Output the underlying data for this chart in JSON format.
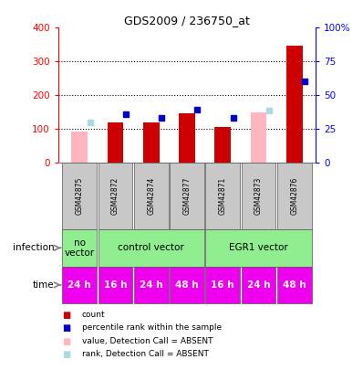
{
  "title": "GDS2009 / 236750_at",
  "samples": [
    "GSM42875",
    "GSM42872",
    "GSM42874",
    "GSM42877",
    "GSM42871",
    "GSM42873",
    "GSM42876"
  ],
  "count_values": [
    null,
    120,
    120,
    148,
    107,
    null,
    348
  ],
  "count_absent": [
    92,
    null,
    null,
    null,
    null,
    150,
    null
  ],
  "rank_values": [
    null,
    143,
    133,
    157,
    134,
    null,
    242
  ],
  "rank_absent": [
    120,
    null,
    null,
    null,
    null,
    155,
    null
  ],
  "ylim_left": [
    0,
    400
  ],
  "yticks_left": [
    0,
    100,
    200,
    300,
    400
  ],
  "ytick_labels_right": [
    "0",
    "25",
    "50",
    "75",
    "100%"
  ],
  "color_count": "#CC0000",
  "color_rank": "#0000CC",
  "color_count_absent": "#FFB6C1",
  "color_rank_absent": "#ADD8E6",
  "time_labels": [
    "24 h",
    "16 h",
    "24 h",
    "48 h",
    "16 h",
    "24 h",
    "48 h"
  ],
  "legend_items": [
    [
      "count",
      "#CC0000"
    ],
    [
      "percentile rank within the sample",
      "#0000CC"
    ],
    [
      "value, Detection Call = ABSENT",
      "#FFB6C1"
    ],
    [
      "rank, Detection Call = ABSENT",
      "#ADD8E6"
    ]
  ],
  "dotted_grid": [
    100,
    200,
    300
  ],
  "bar_width": 0.45
}
